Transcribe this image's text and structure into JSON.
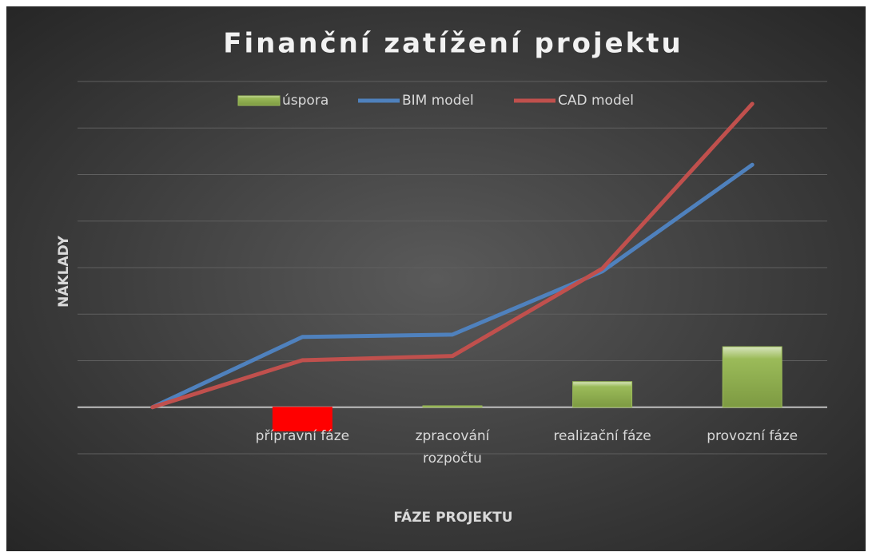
{
  "chart_data": {
    "type": "combo",
    "title": "Finanční zatížení projektu",
    "x_label": "FÁZE PROJEKTU",
    "y_label": "NÁKLADY",
    "categories": [
      null,
      "přípravní fáze",
      "zpracování rozpočtu",
      "realizační fáze",
      "provozní fáze"
    ],
    "series": [
      {
        "name": "úspora",
        "type": "bar",
        "color": "#9bbb59",
        "negative_color": "#ff0000",
        "values": [
          null,
          -0.51,
          0.03,
          0.55,
          1.3
        ]
      },
      {
        "name": "BIM model",
        "type": "line",
        "color": "#4f81bd",
        "values": [
          0,
          1.51,
          1.56,
          2.92,
          5.21
        ]
      },
      {
        "name": "CAD model",
        "type": "line",
        "color": "#c0504d",
        "values": [
          0,
          1.01,
          1.1,
          2.98,
          6.52
        ]
      }
    ],
    "ylim": [
      -1,
      7
    ],
    "yticks": [
      -1,
      0,
      1,
      2,
      3,
      4,
      5,
      6,
      7
    ],
    "grid": true,
    "legend": "top"
  }
}
